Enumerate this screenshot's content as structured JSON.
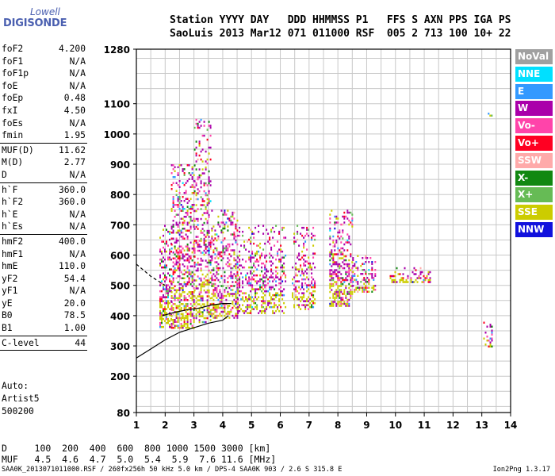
{
  "logo": {
    "line1": "Lowell",
    "line2": "DIGISONDE"
  },
  "header": {
    "row1": "Station YYYY DAY   DDD HHMMSS P1   FFS S AXN PPS IGA PS",
    "row2": "SaoLuis 2013 Mar12 071 011000 RSF  005 2 713 100 10+ 22"
  },
  "params": {
    "group1": [
      {
        "label": "foF2",
        "value": "4.200"
      },
      {
        "label": "foF1",
        "value": "N/A"
      },
      {
        "label": "foF1p",
        "value": "N/A"
      },
      {
        "label": "foE",
        "value": "N/A"
      },
      {
        "label": "foEp",
        "value": "0.48"
      },
      {
        "label": "fxI",
        "value": "4.50"
      },
      {
        "label": "foEs",
        "value": "N/A"
      },
      {
        "label": "fmin",
        "value": "1.95"
      }
    ],
    "group2": [
      {
        "label": "MUF(D)",
        "value": "11.62"
      },
      {
        "label": "M(D)",
        "value": "2.77"
      },
      {
        "label": "D",
        "value": "N/A"
      }
    ],
    "group3": [
      {
        "label": "h`F",
        "value": "360.0"
      },
      {
        "label": "h`F2",
        "value": "360.0"
      },
      {
        "label": "h`E",
        "value": "N/A"
      },
      {
        "label": "h`Es",
        "value": "N/A"
      }
    ],
    "group4": [
      {
        "label": "hmF2",
        "value": "400.0"
      },
      {
        "label": "hmF1",
        "value": "N/A"
      },
      {
        "label": "hmE",
        "value": "110.0"
      },
      {
        "label": "yF2",
        "value": "54.4"
      },
      {
        "label": "yF1",
        "value": "N/A"
      },
      {
        "label": "yE",
        "value": "20.0"
      },
      {
        "label": "B0",
        "value": "78.5"
      },
      {
        "label": "B1",
        "value": "1.00"
      }
    ],
    "group5": [
      {
        "label": "C-level",
        "value": "44"
      }
    ]
  },
  "auto": {
    "line1": "Auto:",
    "line2": "Artist5",
    "line3": "500200"
  },
  "muf_table": {
    "row1": "D     100  200  400  600  800 1000 1500 3000 [km]",
    "row2": "MUF   4.5  4.6  4.7  5.0  5.4  5.9  7.6 11.6 [MHz]"
  },
  "footer": {
    "left": "SAA0K_2013071011000.RSF / 260fx256h 50 kHz 5.0 km / DPS-4 SAA0K 903 / 2.6 S 315.8 E",
    "right": "Ion2Png 1.3.17"
  },
  "legend": [
    {
      "label": "NoVal",
      "color": "#a0a0a0"
    },
    {
      "label": "NNE",
      "color": "#00e0ff"
    },
    {
      "label": "E",
      "color": "#3399ff"
    },
    {
      "label": "W",
      "color": "#aa00aa"
    },
    {
      "label": "Vo-",
      "color": "#ff44aa"
    },
    {
      "label": "Vo+",
      "color": "#ff0022"
    },
    {
      "label": "SSW",
      "color": "#ffaaaa"
    },
    {
      "label": "X-",
      "color": "#118811"
    },
    {
      "label": "X+",
      "color": "#66bb55"
    },
    {
      "label": "SSE",
      "color": "#cccc00"
    },
    {
      "label": "NNW",
      "color": "#1111dd"
    }
  ],
  "chart_data": {
    "type": "scatter",
    "title": "",
    "xlabel": "",
    "ylabel": "",
    "xlim": [
      1,
      14
    ],
    "ylim": [
      80,
      1280
    ],
    "x_ticks": [
      1,
      2,
      3,
      4,
      5,
      6,
      7,
      8,
      9,
      10,
      11,
      12,
      13,
      14
    ],
    "y_ticks": [
      80,
      200,
      300,
      400,
      500,
      600,
      700,
      800,
      900,
      1000,
      1100,
      1280
    ],
    "grid": true,
    "legend_position": "right",
    "clusters": [
      {
        "x": [
          1.8,
          2.2
        ],
        "y": [
          360,
          700
        ],
        "density": 0.55
      },
      {
        "x": [
          2.2,
          3.0
        ],
        "y": [
          360,
          900
        ],
        "density": 0.45
      },
      {
        "x": [
          3.0,
          3.6
        ],
        "y": [
          380,
          1050
        ],
        "density": 0.35
      },
      {
        "x": [
          3.6,
          4.5
        ],
        "y": [
          390,
          750
        ],
        "density": 0.4
      },
      {
        "x": [
          4.5,
          6.2
        ],
        "y": [
          410,
          700
        ],
        "density": 0.35
      },
      {
        "x": [
          6.4,
          7.2
        ],
        "y": [
          420,
          700
        ],
        "density": 0.4
      },
      {
        "x": [
          7.7,
          8.5
        ],
        "y": [
          430,
          750
        ],
        "density": 0.45
      },
      {
        "x": [
          8.5,
          9.3
        ],
        "y": [
          480,
          600
        ],
        "density": 0.45
      },
      {
        "x": [
          9.8,
          11.2
        ],
        "y": [
          510,
          560
        ],
        "density": 0.4
      },
      {
        "x": [
          13.05,
          13.35
        ],
        "y": [
          300,
          380
        ],
        "density": 0.3
      },
      {
        "x": [
          13.1,
          13.4
        ],
        "y": [
          1060,
          1090
        ],
        "density": 0.2
      }
    ],
    "profile_curve": {
      "x": [
        1.0,
        1.5,
        2.0,
        2.5,
        3.0,
        3.5,
        4.0,
        4.2
      ],
      "y": [
        260,
        290,
        320,
        345,
        360,
        375,
        385,
        400
      ]
    },
    "profile_dashed": {
      "x": [
        1.0,
        1.5,
        2.0
      ],
      "y": [
        570,
        530,
        500
      ]
    },
    "trace_curve": {
      "x": [
        1.9,
        2.3,
        2.8,
        3.2,
        3.6,
        4.0,
        4.3
      ],
      "y": [
        400,
        410,
        420,
        425,
        435,
        440,
        440
      ]
    }
  }
}
